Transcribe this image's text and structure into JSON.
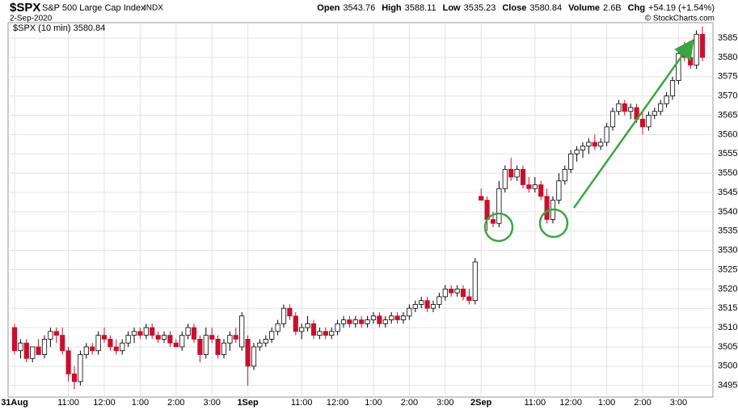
{
  "header": {
    "symbol": "$SPX",
    "name": "S&P 500 Large Cap Index",
    "exchange": "INDX",
    "date": "2-Sep-2020",
    "copyright": "© StockCharts.com",
    "stats": [
      {
        "label": "Open",
        "value": "3543.76"
      },
      {
        "label": "High",
        "value": "3588.11"
      },
      {
        "label": "Low",
        "value": "3535.23"
      },
      {
        "label": "Close",
        "value": "3580.84"
      },
      {
        "label": "Volume",
        "value": "2.6B"
      },
      {
        "label": "Chg",
        "value": "+54.19 (+1.54%)"
      }
    ]
  },
  "chart_data": {
    "type": "candlestick",
    "legend": "$SPX (10 min) 3580.84",
    "up_color": "#ffffff",
    "down_color": "#c8102e",
    "grid": true,
    "categories": [
      "31Aug",
      null,
      null,
      null,
      null,
      null,
      null,
      null,
      null,
      "11:00",
      null,
      null,
      null,
      null,
      null,
      "12:00",
      null,
      null,
      null,
      null,
      null,
      "1:00",
      null,
      null,
      null,
      null,
      null,
      "2:00",
      null,
      null,
      null,
      null,
      null,
      "3:00",
      null,
      null,
      null,
      null,
      null,
      "1Sep",
      null,
      null,
      null,
      null,
      null,
      null,
      null,
      null,
      "11:00",
      null,
      null,
      null,
      null,
      null,
      "12:00",
      null,
      null,
      null,
      null,
      null,
      "1:00",
      null,
      null,
      null,
      null,
      null,
      "2:00",
      null,
      null,
      null,
      null,
      null,
      "3:00",
      null,
      null,
      null,
      null,
      null,
      "2Sep",
      null,
      null,
      null,
      null,
      null,
      null,
      null,
      null,
      "11:00",
      null,
      null,
      null,
      null,
      null,
      "12:00",
      null,
      null,
      null,
      null,
      null,
      "1:00",
      null,
      null,
      null,
      null,
      null,
      "2:00",
      null,
      null,
      null,
      null,
      null,
      "3:00",
      null,
      null,
      null,
      null
    ],
    "open": [
      3510,
      3504,
      3506,
      3502,
      3505,
      3503,
      3507,
      3509,
      3508,
      3504,
      3498,
      3496,
      3503,
      3505,
      3504,
      3508,
      3507,
      3505,
      3504,
      3506,
      3508,
      3509,
      3508,
      3510,
      3508,
      3507,
      3508,
      3506,
      3505,
      3508,
      3510,
      3507,
      3503,
      3508,
      3507,
      3503,
      3506,
      3508,
      3505,
      3507,
      3500,
      3505,
      3506,
      3507,
      3509,
      3511,
      3515,
      3513,
      3509,
      3510,
      3511,
      3508,
      3509,
      3508,
      3509,
      3511,
      3512,
      3511,
      3512,
      3511,
      3512,
      3513,
      3511,
      3512,
      3513,
      3512,
      3513,
      3515,
      3516,
      3517,
      3515,
      3516,
      3518,
      3520,
      3519,
      3520,
      3518,
      3517,
      3544,
      3543,
      3538,
      3537,
      3546,
      3551,
      3549,
      3551,
      3547,
      3546,
      3547,
      3544,
      3538,
      3543,
      3548,
      3551,
      3555,
      3556,
      3557,
      3558,
      3557,
      3558,
      3562,
      3566,
      3568,
      3566,
      3567,
      3564,
      3562,
      3565,
      3566,
      3568,
      3570,
      3574,
      3581,
      3580,
      3578,
      3586
    ],
    "high": [
      3511,
      3507,
      3507,
      3505,
      3507,
      3508,
      3510,
      3510,
      3510,
      3505,
      3500,
      3504,
      3506,
      3506,
      3509,
      3510,
      3508,
      3507,
      3507,
      3509,
      3510,
      3510,
      3511,
      3511,
      3509,
      3509,
      3509,
      3507,
      3509,
      3511,
      3511,
      3508,
      3510,
      3510,
      3508,
      3507,
      3509,
      3510,
      3514,
      3508,
      3506,
      3507,
      3508,
      3510,
      3512,
      3516,
      3516,
      3514,
      3511,
      3513,
      3512,
      3510,
      3510,
      3510,
      3512,
      3513,
      3513,
      3513,
      3513,
      3513,
      3514,
      3514,
      3513,
      3514,
      3514,
      3514,
      3516,
      3517,
      3518,
      3518,
      3517,
      3519,
      3521,
      3521,
      3521,
      3521,
      3520,
      3528,
      3546,
      3544,
      3540,
      3548,
      3552,
      3554,
      3552,
      3552,
      3549,
      3549,
      3548,
      3546,
      3544,
      3550,
      3552,
      3556,
      3557,
      3558,
      3559,
      3560,
      3559,
      3563,
      3567,
      3569,
      3569,
      3568,
      3568,
      3566,
      3566,
      3567,
      3569,
      3571,
      3575,
      3582,
      3584,
      3582,
      3587,
      3588
    ],
    "low": [
      3503,
      3502,
      3501,
      3501,
      3503,
      3502,
      3505,
      3506,
      3503,
      3496,
      3494,
      3495,
      3502,
      3503,
      3503,
      3506,
      3504,
      3503,
      3503,
      3505,
      3506,
      3507,
      3507,
      3507,
      3506,
      3506,
      3505,
      3505,
      3504,
      3507,
      3506,
      3501,
      3502,
      3506,
      3502,
      3502,
      3504,
      3506,
      3504,
      3495,
      3499,
      3504,
      3505,
      3506,
      3508,
      3510,
      3512,
      3508,
      3507,
      3509,
      3507,
      3507,
      3507,
      3507,
      3508,
      3510,
      3510,
      3510,
      3510,
      3510,
      3511,
      3510,
      3510,
      3511,
      3511,
      3511,
      3512,
      3514,
      3515,
      3514,
      3514,
      3515,
      3517,
      3518,
      3518,
      3517,
      3516,
      3516,
      3543,
      3535,
      3536,
      3536,
      3545,
      3548,
      3548,
      3546,
      3545,
      3545,
      3543,
      3537,
      3537,
      3542,
      3547,
      3550,
      3553,
      3554,
      3555,
      3556,
      3556,
      3557,
      3561,
      3565,
      3565,
      3564,
      3563,
      3560,
      3561,
      3564,
      3565,
      3567,
      3569,
      3573,
      3579,
      3577,
      3577,
      3579
    ],
    "close": [
      3504,
      3506,
      3502,
      3505,
      3503,
      3507,
      3509,
      3508,
      3504,
      3498,
      3496,
      3503,
      3505,
      3504,
      3508,
      3507,
      3505,
      3504,
      3506,
      3508,
      3509,
      3508,
      3510,
      3508,
      3507,
      3508,
      3506,
      3505,
      3508,
      3510,
      3507,
      3503,
      3508,
      3507,
      3503,
      3506,
      3508,
      3507,
      3513,
      3500,
      3505,
      3506,
      3507,
      3509,
      3511,
      3515,
      3513,
      3509,
      3510,
      3511,
      3508,
      3509,
      3508,
      3509,
      3511,
      3512,
      3511,
      3512,
      3511,
      3512,
      3513,
      3511,
      3512,
      3513,
      3512,
      3513,
      3515,
      3516,
      3517,
      3515,
      3516,
      3518,
      3520,
      3519,
      3520,
      3518,
      3517,
      3527,
      3543,
      3538,
      3537,
      3546,
      3551,
      3549,
      3551,
      3547,
      3546,
      3547,
      3544,
      3538,
      3543,
      3548,
      3551,
      3555,
      3556,
      3557,
      3558,
      3557,
      3558,
      3562,
      3566,
      3568,
      3566,
      3567,
      3564,
      3562,
      3565,
      3566,
      3568,
      3570,
      3574,
      3581,
      3580,
      3578,
      3586,
      3580
    ],
    "ylim": [
      3492,
      3589
    ],
    "yticks": [
      3495,
      3500,
      3505,
      3510,
      3515,
      3520,
      3525,
      3530,
      3535,
      3540,
      3545,
      3550,
      3555,
      3560,
      3565,
      3570,
      3575,
      3580,
      3585
    ]
  }
}
